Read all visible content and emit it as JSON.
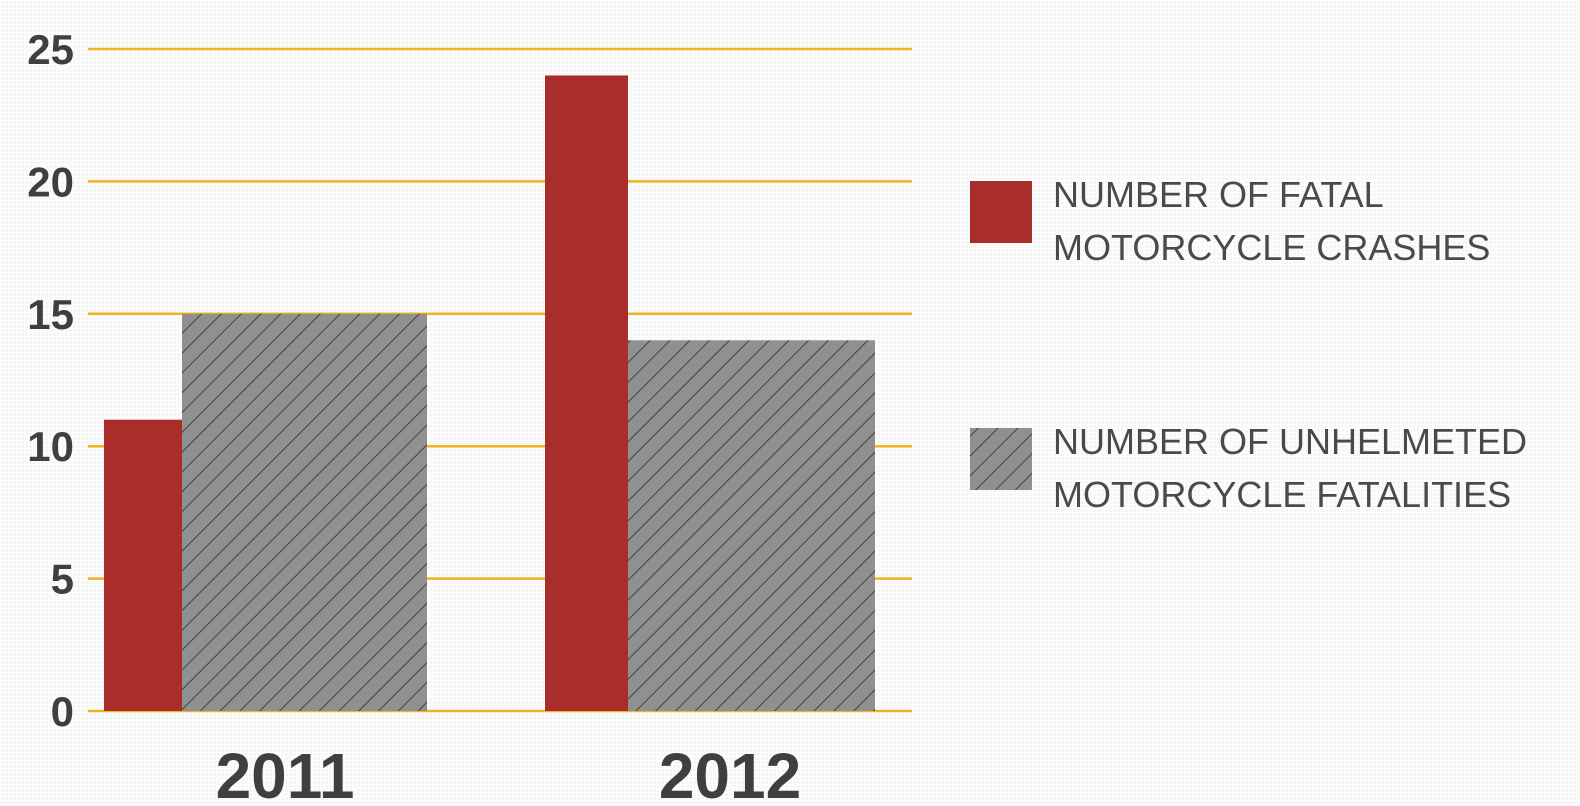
{
  "chart_data": {
    "type": "bar",
    "categories": [
      "2011",
      "2012"
    ],
    "series": [
      {
        "name": "NUMBER OF FATAL MOTORCYCLE CRASHES",
        "legend_lines": [
          "NUMBER OF FATAL",
          "MOTORCYCLE CRASHES"
        ],
        "values": [
          11,
          24
        ],
        "color": "#a82d2b",
        "fill": "solid"
      },
      {
        "name": "NUMBER OF UNHELMETED MOTORCYCLE FATALITIES",
        "legend_lines": [
          "NUMBER OF UNHELMETED",
          "MOTORCYCLE FATALITIES"
        ],
        "values": [
          15,
          14
        ],
        "color": "#909090",
        "fill": "hatched"
      }
    ],
    "yticks": [
      0,
      5,
      10,
      15,
      20,
      25
    ],
    "ylim": [
      0,
      25
    ],
    "title": "",
    "xlabel": "",
    "ylabel": "",
    "grid": true,
    "gridline_color": "#f0b41e",
    "legend_position": "right",
    "overlapping_bars": true
  }
}
